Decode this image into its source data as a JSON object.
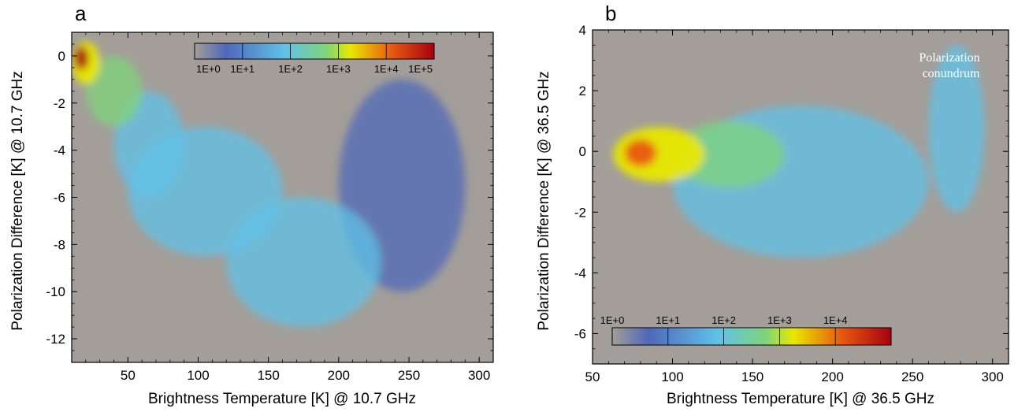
{
  "chart_data": [
    {
      "type": "heatmap",
      "panel": "a",
      "xlabel": "Brightness Temperature [K] @ 10.7 GHz",
      "ylabel": "Polarization Difference [K] @ 10.7 GHz",
      "xlim": [
        10,
        310
      ],
      "ylim": [
        -13,
        1
      ],
      "xticks": [
        50,
        100,
        150,
        200,
        250,
        300
      ],
      "yticks": [
        0,
        -2,
        -4,
        -6,
        -8,
        -10,
        -12
      ],
      "background_color": "#a39e99",
      "colorbar": {
        "scale": "log",
        "labels": [
          "1E+0",
          "1E+1",
          "1E+2",
          "1E+3",
          "1E+4",
          "1E+5"
        ],
        "colors": [
          "#a39e99",
          "#4f68b8",
          "#60c2e8",
          "#e8e800",
          "#e85a10",
          "#a80010"
        ],
        "placement": "top-center"
      },
      "density_regions": [
        {
          "x": [
            12,
            22
          ],
          "y": [
            -0.6,
            0.4
          ],
          "level": 5
        },
        {
          "x": [
            10,
            30
          ],
          "y": [
            -1.2,
            0.6
          ],
          "level": 3.5
        },
        {
          "x": [
            20,
            60
          ],
          "y": [
            -3,
            0
          ],
          "level": 2.5
        },
        {
          "x": [
            40,
            90
          ],
          "y": [
            -6,
            -1.5
          ],
          "level": 1.8
        },
        {
          "x": [
            50,
            160
          ],
          "y": [
            -8.5,
            -3
          ],
          "level": 1.2
        },
        {
          "x": [
            120,
            230
          ],
          "y": [
            -11.5,
            -6
          ],
          "level": 1
        },
        {
          "x": [
            200,
            290
          ],
          "y": [
            -10,
            -1
          ],
          "level": 0.8
        }
      ]
    },
    {
      "type": "heatmap",
      "panel": "b",
      "xlabel": "Brightness Temperature [K] @ 36.5 GHz",
      "ylabel": "Polarization Difference [K] @ 36.5 GHz",
      "xlim": [
        50,
        310
      ],
      "ylim": [
        -7,
        4
      ],
      "xticks": [
        50,
        100,
        150,
        200,
        250,
        300
      ],
      "yticks": [
        4,
        2,
        0,
        -2,
        -4,
        -6
      ],
      "background_color": "#a39e99",
      "annotation": "Polarization\nconundrum",
      "colorbar": {
        "scale": "log",
        "labels": [
          "1E+0",
          "1E+1",
          "1E+2",
          "1E+3",
          "1E+4"
        ],
        "colors": [
          "#a39e99",
          "#4f68b8",
          "#60c2e8",
          "#e8e800",
          "#e85a10",
          "#a80010"
        ],
        "placement": "bottom-left"
      },
      "density_regions": [
        {
          "x": [
            70,
            90
          ],
          "y": [
            -0.5,
            0.4
          ],
          "level": 4.5
        },
        {
          "x": [
            63,
            120
          ],
          "y": [
            -1,
            0.8
          ],
          "level": 3
        },
        {
          "x": [
            100,
            170
          ],
          "y": [
            -1.2,
            1
          ],
          "level": 2
        },
        {
          "x": [
            100,
            260
          ],
          "y": [
            -3.5,
            1.5
          ],
          "level": 1
        },
        {
          "x": [
            260,
            295
          ],
          "y": [
            -2,
            3.5
          ],
          "level": 1.5
        }
      ]
    }
  ]
}
